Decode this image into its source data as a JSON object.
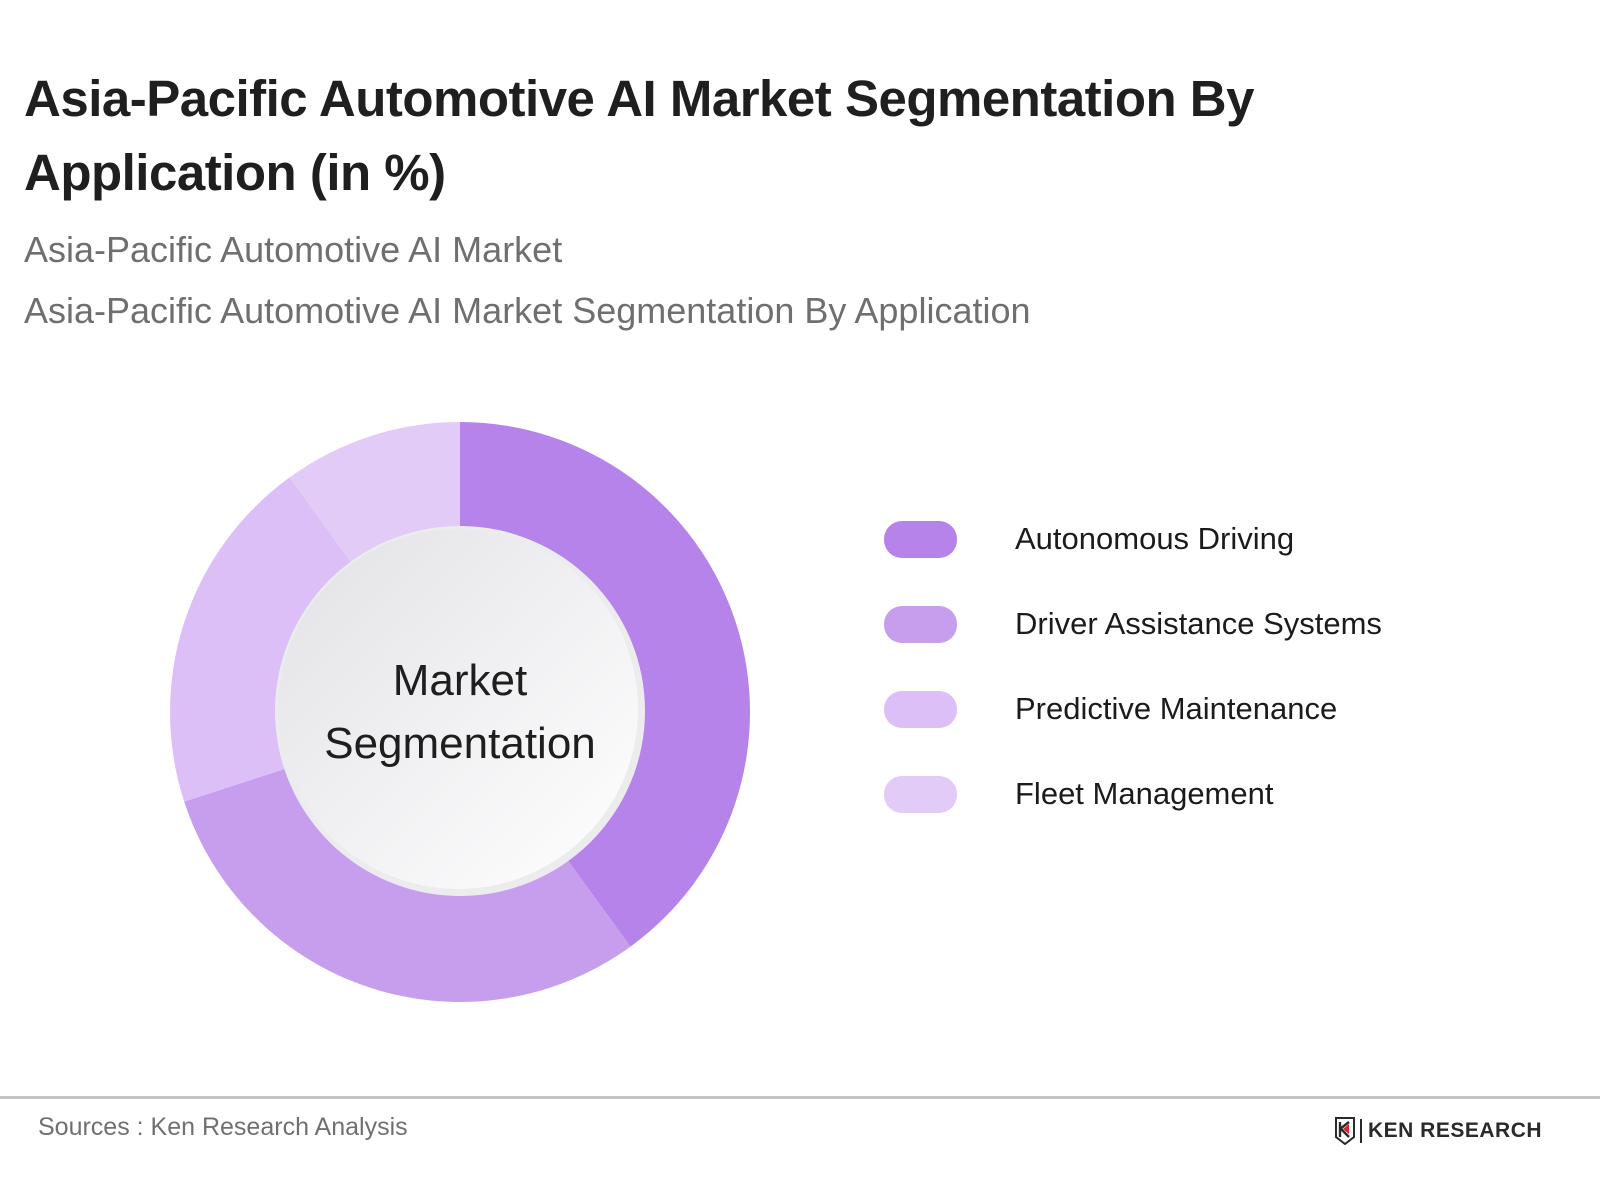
{
  "header": {
    "title": "Asia-Pacific Automotive AI Market Segmentation By Application (in %)",
    "subtitle_1": "Asia-Pacific Automotive AI Market",
    "subtitle_2": "Asia-Pacific Automotive AI Market Segmentation By Application"
  },
  "donut": {
    "center_line_1": "Market",
    "center_line_2": "Segmentation"
  },
  "legend": {
    "items": [
      {
        "label": "Autonomous Driving",
        "color": "#b583ea"
      },
      {
        "label": "Driver Assistance Systems",
        "color": "#c79dee"
      },
      {
        "label": "Predictive Maintenance",
        "color": "#dbbff6"
      },
      {
        "label": "Fleet Management",
        "color": "#e2cbf7"
      }
    ]
  },
  "footer": {
    "source": "Sources : Ken Research Analysis",
    "brand": "KEN RESEARCH",
    "brand_icon": "ken-research-logo-icon"
  },
  "chart_data": {
    "type": "pie",
    "subtype": "donut",
    "title": "Asia-Pacific Automotive AI Market Segmentation By Application (in %)",
    "subtitle": [
      "Asia-Pacific Automotive AI Market",
      "Asia-Pacific Automotive AI Market Segmentation By Application"
    ],
    "center_text": "Market Segmentation",
    "categories": [
      "Autonomous Driving",
      "Driver Assistance Systems",
      "Predictive Maintenance",
      "Fleet Management"
    ],
    "values": [
      40,
      30,
      20,
      10
    ],
    "unit": "%",
    "colors": [
      "#b583ea",
      "#c79dee",
      "#dbbff6",
      "#e2cbf7"
    ],
    "start_angle": "12 o'clock, clockwise",
    "legend_position": "right",
    "data_labels_shown": false
  }
}
